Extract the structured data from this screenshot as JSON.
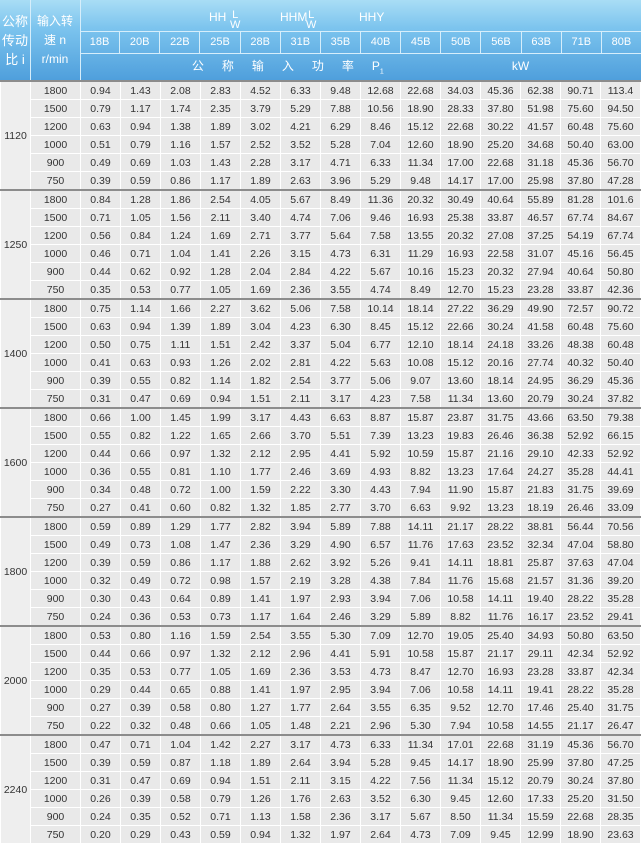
{
  "header": {
    "ratio_label": [
      "公称",
      "传动",
      "比 i"
    ],
    "speed_label": [
      "输入转",
      "速 n",
      "r/min"
    ],
    "series": [
      "HH",
      "HHM",
      "HHY"
    ],
    "series_sub_top": "L",
    "series_sub_bottom": "W",
    "models": [
      "18B",
      "20B",
      "22B",
      "25B",
      "28B",
      "31B",
      "35B",
      "40B",
      "45B",
      "50B",
      "56B",
      "63B",
      "71B",
      "80B"
    ],
    "power_label": "公称输入功率",
    "power_symbol": "P",
    "power_sub": "1",
    "power_unit": "kW"
  },
  "groups": [
    {
      "ratio": "1120",
      "rows": [
        [
          "1800",
          "0.94",
          "1.43",
          "2.08",
          "2.83",
          "4.52",
          "6.33",
          "9.48",
          "12.68",
          "22.68",
          "34.03",
          "45.36",
          "62.38",
          "90.71",
          "113.4"
        ],
        [
          "1500",
          "0.79",
          "1.17",
          "1.74",
          "2.35",
          "3.79",
          "5.29",
          "7.88",
          "10.56",
          "18.90",
          "28.33",
          "37.80",
          "51.98",
          "75.60",
          "94.50"
        ],
        [
          "1200",
          "0.63",
          "0.94",
          "1.38",
          "1.89",
          "3.02",
          "4.21",
          "6.29",
          "8.46",
          "15.12",
          "22.68",
          "30.22",
          "41.57",
          "60.48",
          "75.60"
        ],
        [
          "1000",
          "0.51",
          "0.79",
          "1.16",
          "1.57",
          "2.52",
          "3.52",
          "5.28",
          "7.04",
          "12.60",
          "18.90",
          "25.20",
          "34.68",
          "50.40",
          "63.00"
        ],
        [
          "900",
          "0.49",
          "0.69",
          "1.03",
          "1.43",
          "2.28",
          "3.17",
          "4.71",
          "6.33",
          "11.34",
          "17.00",
          "22.68",
          "31.18",
          "45.36",
          "56.70"
        ],
        [
          "750",
          "0.39",
          "0.59",
          "0.86",
          "1.17",
          "1.89",
          "2.63",
          "3.96",
          "5.29",
          "9.48",
          "14.17",
          "17.00",
          "25.98",
          "37.80",
          "47.28"
        ]
      ]
    },
    {
      "ratio": "1250",
      "rows": [
        [
          "1800",
          "0.84",
          "1.28",
          "1.86",
          "2.54",
          "4.05",
          "5.67",
          "8.49",
          "11.36",
          "20.32",
          "30.49",
          "40.64",
          "55.89",
          "81.28",
          "101.6"
        ],
        [
          "1500",
          "0.71",
          "1.05",
          "1.56",
          "2.11",
          "3.40",
          "4.74",
          "7.06",
          "9.46",
          "16.93",
          "25.38",
          "33.87",
          "46.57",
          "67.74",
          "84.67"
        ],
        [
          "1200",
          "0.56",
          "0.84",
          "1.24",
          "1.69",
          "2.71",
          "3.77",
          "5.64",
          "7.58",
          "13.55",
          "20.32",
          "27.08",
          "37.25",
          "54.19",
          "67.74"
        ],
        [
          "1000",
          "0.46",
          "0.71",
          "1.04",
          "1.41",
          "2.26",
          "3.15",
          "4.73",
          "6.31",
          "11.29",
          "16.93",
          "22.58",
          "31.07",
          "45.16",
          "56.45"
        ],
        [
          "900",
          "0.44",
          "0.62",
          "0.92",
          "1.28",
          "2.04",
          "2.84",
          "4.22",
          "5.67",
          "10.16",
          "15.23",
          "20.32",
          "27.94",
          "40.64",
          "50.80"
        ],
        [
          "750",
          "0.35",
          "0.53",
          "0.77",
          "1.05",
          "1.69",
          "2.36",
          "3.55",
          "4.74",
          "8.49",
          "12.70",
          "15.23",
          "23.28",
          "33.87",
          "42.36"
        ]
      ]
    },
    {
      "ratio": "1400",
      "rows": [
        [
          "1800",
          "0.75",
          "1.14",
          "1.66",
          "2.27",
          "3.62",
          "5.06",
          "7.58",
          "10.14",
          "18.14",
          "27.22",
          "36.29",
          "49.90",
          "72.57",
          "90.72"
        ],
        [
          "1500",
          "0.63",
          "0.94",
          "1.39",
          "1.89",
          "3.04",
          "4.23",
          "6.30",
          "8.45",
          "15.12",
          "22.66",
          "30.24",
          "41.58",
          "60.48",
          "75.60"
        ],
        [
          "1200",
          "0.50",
          "0.75",
          "1.11",
          "1.51",
          "2.42",
          "3.37",
          "5.04",
          "6.77",
          "12.10",
          "18.14",
          "24.18",
          "33.26",
          "48.38",
          "60.48"
        ],
        [
          "1000",
          "0.41",
          "0.63",
          "0.93",
          "1.26",
          "2.02",
          "2.81",
          "4.22",
          "5.63",
          "10.08",
          "15.12",
          "20.16",
          "27.74",
          "40.32",
          "50.40"
        ],
        [
          "900",
          "0.39",
          "0.55",
          "0.82",
          "1.14",
          "1.82",
          "2.54",
          "3.77",
          "5.06",
          "9.07",
          "13.60",
          "18.14",
          "24.95",
          "36.29",
          "45.36"
        ],
        [
          "750",
          "0.31",
          "0.47",
          "0.69",
          "0.94",
          "1.51",
          "2.11",
          "3.17",
          "4.23",
          "7.58",
          "11.34",
          "13.60",
          "20.79",
          "30.24",
          "37.82"
        ]
      ]
    },
    {
      "ratio": "1600",
      "rows": [
        [
          "1800",
          "0.66",
          "1.00",
          "1.45",
          "1.99",
          "3.17",
          "4.43",
          "6.63",
          "8.87",
          "15.87",
          "23.87",
          "31.75",
          "43.66",
          "63.50",
          "79.38"
        ],
        [
          "1500",
          "0.55",
          "0.82",
          "1.22",
          "1.65",
          "2.66",
          "3.70",
          "5.51",
          "7.39",
          "13.23",
          "19.83",
          "26.46",
          "36.38",
          "52.92",
          "66.15"
        ],
        [
          "1200",
          "0.44",
          "0.66",
          "0.97",
          "1.32",
          "2.12",
          "2.95",
          "4.41",
          "5.92",
          "10.59",
          "15.87",
          "21.16",
          "29.10",
          "42.33",
          "52.92"
        ],
        [
          "1000",
          "0.36",
          "0.55",
          "0.81",
          "1.10",
          "1.77",
          "2.46",
          "3.69",
          "4.93",
          "8.82",
          "13.23",
          "17.64",
          "24.27",
          "35.28",
          "44.41"
        ],
        [
          "900",
          "0.34",
          "0.48",
          "0.72",
          "1.00",
          "1.59",
          "2.22",
          "3.30",
          "4.43",
          "7.94",
          "11.90",
          "15.87",
          "21.83",
          "31.75",
          "39.69"
        ],
        [
          "750",
          "0.27",
          "0.41",
          "0.60",
          "0.82",
          "1.32",
          "1.85",
          "2.77",
          "3.70",
          "6.63",
          "9.92",
          "13.23",
          "18.19",
          "26.46",
          "33.09"
        ]
      ]
    },
    {
      "ratio": "1800",
      "rows": [
        [
          "1800",
          "0.59",
          "0.89",
          "1.29",
          "1.77",
          "2.82",
          "3.94",
          "5.89",
          "7.88",
          "14.11",
          "21.17",
          "28.22",
          "38.81",
          "56.44",
          "70.56"
        ],
        [
          "1500",
          "0.49",
          "0.73",
          "1.08",
          "1.47",
          "2.36",
          "3.29",
          "4.90",
          "6.57",
          "11.76",
          "17.63",
          "23.52",
          "32.34",
          "47.04",
          "58.80"
        ],
        [
          "1200",
          "0.39",
          "0.59",
          "0.86",
          "1.17",
          "1.88",
          "2.62",
          "3.92",
          "5.26",
          "9.41",
          "14.11",
          "18.81",
          "25.87",
          "37.63",
          "47.04"
        ],
        [
          "1000",
          "0.32",
          "0.49",
          "0.72",
          "0.98",
          "1.57",
          "2.19",
          "3.28",
          "4.38",
          "7.84",
          "11.76",
          "15.68",
          "21.57",
          "31.36",
          "39.20"
        ],
        [
          "900",
          "0.30",
          "0.43",
          "0.64",
          "0.89",
          "1.41",
          "1.97",
          "2.93",
          "3.94",
          "7.06",
          "10.58",
          "14.11",
          "19.40",
          "28.22",
          "35.28"
        ],
        [
          "750",
          "0.24",
          "0.36",
          "0.53",
          "0.73",
          "1.17",
          "1.64",
          "2.46",
          "3.29",
          "5.89",
          "8.82",
          "11.76",
          "16.17",
          "23.52",
          "29.41"
        ]
      ]
    },
    {
      "ratio": "2000",
      "rows": [
        [
          "1800",
          "0.53",
          "0.80",
          "1.16",
          "1.59",
          "2.54",
          "3.55",
          "5.30",
          "7.09",
          "12.70",
          "19.05",
          "25.40",
          "34.93",
          "50.80",
          "63.50"
        ],
        [
          "1500",
          "0.44",
          "0.66",
          "0.97",
          "1.32",
          "2.12",
          "2.96",
          "4.41",
          "5.91",
          "10.58",
          "15.87",
          "21.17",
          "29.11",
          "42.34",
          "52.92"
        ],
        [
          "1200",
          "0.35",
          "0.53",
          "0.77",
          "1.05",
          "1.69",
          "2.36",
          "3.53",
          "4.73",
          "8.47",
          "12.70",
          "16.93",
          "23.28",
          "33.87",
          "42.34"
        ],
        [
          "1000",
          "0.29",
          "0.44",
          "0.65",
          "0.88",
          "1.41",
          "1.97",
          "2.95",
          "3.94",
          "7.06",
          "10.58",
          "14.11",
          "19.41",
          "28.22",
          "35.28"
        ],
        [
          "900",
          "0.27",
          "0.39",
          "0.58",
          "0.80",
          "1.27",
          "1.77",
          "2.64",
          "3.55",
          "6.35",
          "9.52",
          "12.70",
          "17.46",
          "25.40",
          "31.75"
        ],
        [
          "750",
          "0.22",
          "0.32",
          "0.48",
          "0.66",
          "1.05",
          "1.48",
          "2.21",
          "2.96",
          "5.30",
          "7.94",
          "10.58",
          "14.55",
          "21.17",
          "26.47"
        ]
      ]
    },
    {
      "ratio": "2240",
      "rows": [
        [
          "1800",
          "0.47",
          "0.71",
          "1.04",
          "1.42",
          "2.27",
          "3.17",
          "4.73",
          "6.33",
          "11.34",
          "17.01",
          "22.68",
          "31.19",
          "45.36",
          "56.70"
        ],
        [
          "1500",
          "0.39",
          "0.59",
          "0.87",
          "1.18",
          "1.89",
          "2.64",
          "3.94",
          "5.28",
          "9.45",
          "14.17",
          "18.90",
          "25.99",
          "37.80",
          "47.25"
        ],
        [
          "1200",
          "0.31",
          "0.47",
          "0.69",
          "0.94",
          "1.51",
          "2.11",
          "3.15",
          "4.22",
          "7.56",
          "11.34",
          "15.12",
          "20.79",
          "30.24",
          "37.80"
        ],
        [
          "1000",
          "0.26",
          "0.39",
          "0.58",
          "0.79",
          "1.26",
          "1.76",
          "2.63",
          "3.52",
          "6.30",
          "9.45",
          "12.60",
          "17.33",
          "25.20",
          "31.50"
        ],
        [
          "900",
          "0.24",
          "0.35",
          "0.52",
          "0.71",
          "1.13",
          "1.58",
          "2.36",
          "3.17",
          "5.67",
          "8.50",
          "11.34",
          "15.59",
          "22.68",
          "28.35"
        ],
        [
          "750",
          "0.20",
          "0.29",
          "0.43",
          "0.59",
          "0.94",
          "1.32",
          "1.97",
          "2.64",
          "4.73",
          "7.09",
          "9.45",
          "12.99",
          "18.90",
          "23.63"
        ]
      ]
    }
  ]
}
